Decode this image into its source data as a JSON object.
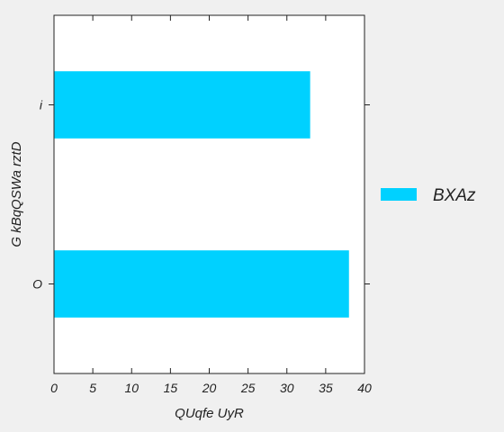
{
  "chart_data": {
    "type": "bar",
    "orientation": "horizontal",
    "categories": [
      "O",
      "i"
    ],
    "series": [
      {
        "name": "BXAz",
        "values": [
          38,
          33
        ],
        "color": "#00d1ff"
      }
    ],
    "xlabel": "QUqfe UyR",
    "ylabel": "G kBqQSWa rztD",
    "xlim": [
      0,
      40
    ],
    "xticks": [
      0,
      5,
      10,
      15,
      20,
      25,
      30,
      35,
      40
    ],
    "grid": false,
    "legend_position": "right",
    "colors": {
      "plot_background": "#ffffff",
      "figure_background": "#f0f0f0",
      "axis": "#222222"
    }
  }
}
